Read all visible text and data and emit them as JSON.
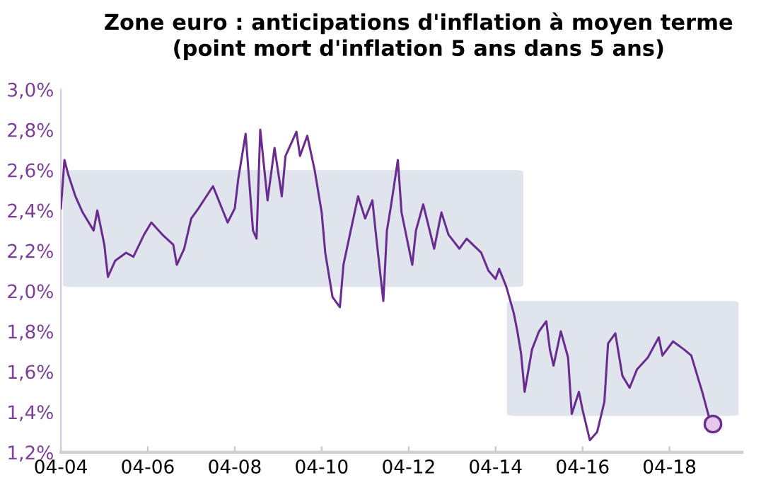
{
  "chart_data": {
    "type": "line",
    "title": "Zone euro : anticipations d'inflation à moyen terme\n(point mort d'inflation 5 ans dans 5 ans)",
    "x": [
      "2004-04",
      "2004-05",
      "2004-06",
      "2004-08",
      "2004-10",
      "2005-01",
      "2005-02",
      "2005-04",
      "2005-05",
      "2005-07",
      "2005-10",
      "2005-12",
      "2006-03",
      "2006-05",
      "2006-08",
      "2006-11",
      "2006-12",
      "2007-02",
      "2007-04",
      "2007-06",
      "2007-10",
      "2007-12",
      "2008-02",
      "2008-04",
      "2008-05",
      "2008-07",
      "2008-09",
      "2008-10",
      "2008-11",
      "2009-01",
      "2009-03",
      "2009-05",
      "2009-06",
      "2009-09",
      "2009-10",
      "2009-12",
      "2010-02",
      "2010-04",
      "2010-05",
      "2010-07",
      "2010-09",
      "2010-10",
      "2010-12",
      "2011-02",
      "2011-04",
      "2011-06",
      "2011-07",
      "2011-09",
      "2011-10",
      "2011-11",
      "2012-01",
      "2012-02",
      "2012-05",
      "2012-06",
      "2012-08",
      "2012-11",
      "2013-01",
      "2013-03",
      "2013-06",
      "2013-08",
      "2013-12",
      "2014-02",
      "2014-04",
      "2014-05",
      "2014-07",
      "2014-09",
      "2014-10",
      "2014-11",
      "2014-12",
      "2015-02",
      "2015-04",
      "2015-06",
      "2015-07",
      "2015-08",
      "2015-10",
      "2015-12",
      "2016-01",
      "2016-03",
      "2016-04",
      "2016-06",
      "2016-08",
      "2016-10",
      "2016-11",
      "2017-01",
      "2017-03",
      "2017-05",
      "2017-07",
      "2017-10",
      "2018-01",
      "2018-02",
      "2018-05",
      "2018-08",
      "2018-10",
      "2018-12",
      "2019-01",
      "2019-03",
      "2019-04"
    ],
    "series": [
      {
        "color": "#6a2c8e",
        "values": [
          2.41,
          2.65,
          2.58,
          2.47,
          2.39,
          2.3,
          2.4,
          2.23,
          2.07,
          2.15,
          2.19,
          2.17,
          2.28,
          2.34,
          2.28,
          2.23,
          2.13,
          2.21,
          2.36,
          2.41,
          2.52,
          2.43,
          2.34,
          2.41,
          2.56,
          2.78,
          2.3,
          2.26,
          2.8,
          2.45,
          2.71,
          2.47,
          2.67,
          2.79,
          2.67,
          2.77,
          2.6,
          2.39,
          2.19,
          1.97,
          1.92,
          2.13,
          2.3,
          2.47,
          2.36,
          2.45,
          2.28,
          1.95,
          2.3,
          2.41,
          2.65,
          2.39,
          2.13,
          2.3,
          2.43,
          2.21,
          2.39,
          2.28,
          2.21,
          2.26,
          2.19,
          2.1,
          2.06,
          2.11,
          2.02,
          1.89,
          1.8,
          1.69,
          1.5,
          1.71,
          1.8,
          1.85,
          1.71,
          1.63,
          1.8,
          1.67,
          1.39,
          1.5,
          1.41,
          1.26,
          1.3,
          1.45,
          1.74,
          1.79,
          1.58,
          1.52,
          1.61,
          1.67,
          1.77,
          1.68,
          1.75,
          1.71,
          1.68,
          1.56,
          1.5,
          1.37,
          1.33
        ]
      },
      {
        "type": "scatter",
        "color": "#6a2c8e",
        "marker": "circle",
        "x": [
          "2019-04"
        ],
        "values": [
          1.34
        ]
      }
    ],
    "bands": [
      {
        "axis": "y",
        "from": 2.02,
        "to": 2.6,
        "color": "#dfe4ed"
      },
      {
        "axis": "y",
        "from": 1.38,
        "to": 1.95,
        "color": "#dfe4ed"
      }
    ],
    "xlim": [
      "2004-04",
      "2019-12"
    ],
    "xticks": [
      {
        "value": "2004-04",
        "label": "04-04"
      },
      {
        "value": "2006-04",
        "label": "04-06"
      },
      {
        "value": "2008-04",
        "label": "04-08"
      },
      {
        "value": "2010-04",
        "label": "04-10"
      },
      {
        "value": "2012-04",
        "label": "04-12"
      },
      {
        "value": "2014-04",
        "label": "04-14"
      },
      {
        "value": "2016-04",
        "label": "04-16"
      },
      {
        "value": "2018-04",
        "label": "04-18"
      }
    ],
    "ylim": [
      1.2,
      3.0
    ],
    "yticks": [
      {
        "value": 1.2,
        "label": "1,2%"
      },
      {
        "value": 1.4,
        "label": "1,4%"
      },
      {
        "value": 1.6,
        "label": "1,6%"
      },
      {
        "value": 1.8,
        "label": "1,8%"
      },
      {
        "value": 2.0,
        "label": "2,0%"
      },
      {
        "value": 2.2,
        "label": "2,2%"
      },
      {
        "value": 2.4,
        "label": "2,4%"
      },
      {
        "value": 2.6,
        "label": "2,6%"
      },
      {
        "value": 2.8,
        "label": "2,8%"
      },
      {
        "value": 3.0,
        "label": "3,0%"
      }
    ],
    "grid": false
  }
}
